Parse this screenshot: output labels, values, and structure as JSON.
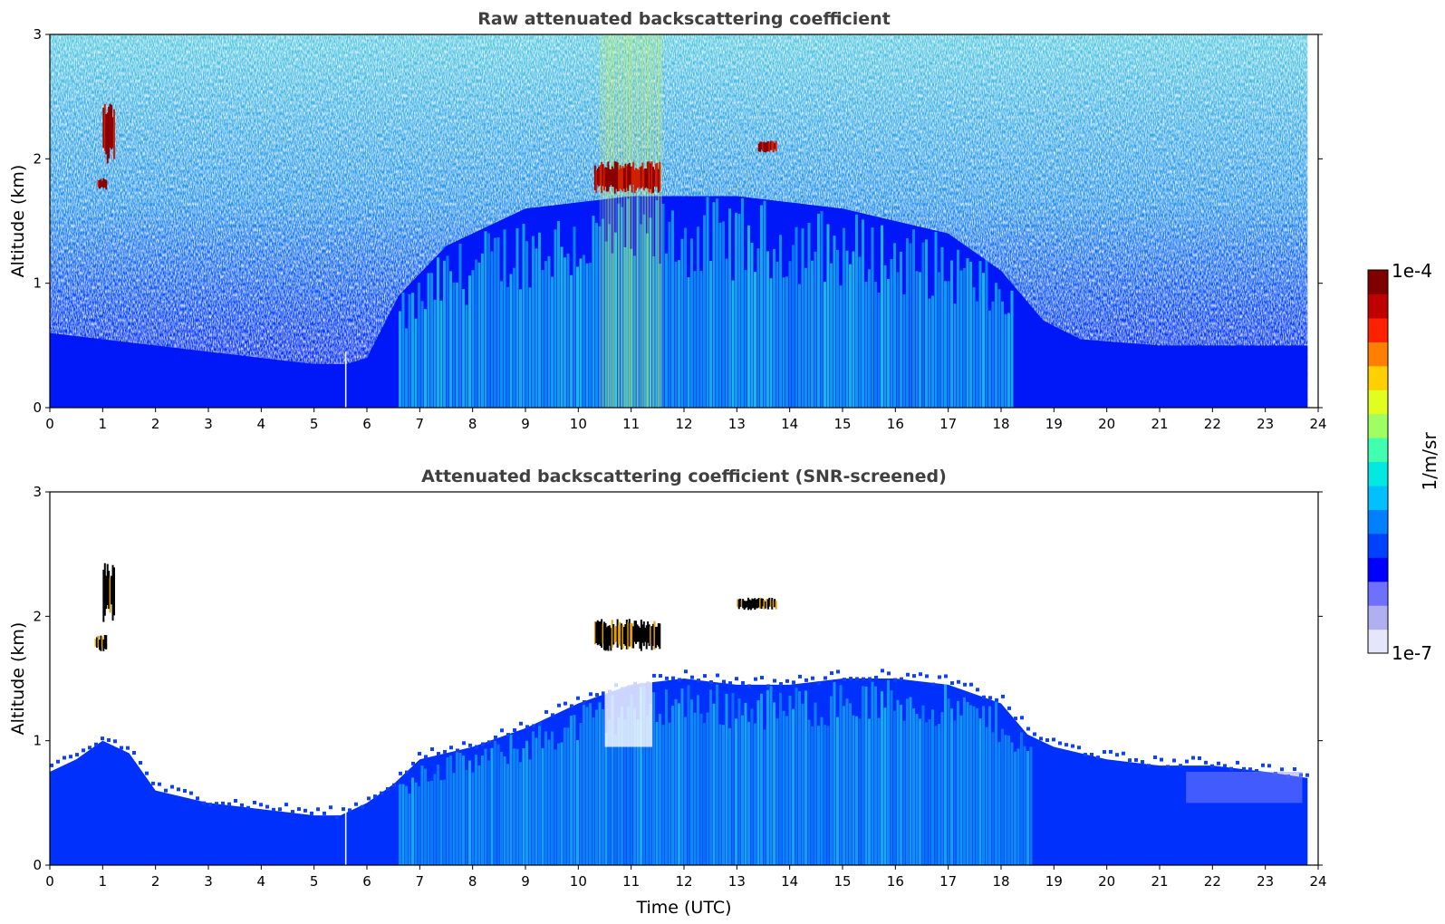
{
  "chart_data": [
    {
      "type": "heatmap",
      "title": "Raw attenuated backscattering coefficient",
      "xlabel": "",
      "ylabel": "Altitude (km)",
      "xlim": [
        0,
        24
      ],
      "ylim": [
        0,
        3
      ],
      "xticks": [
        "0",
        "1",
        "2",
        "3",
        "4",
        "5",
        "6",
        "7",
        "8",
        "9",
        "10",
        "11",
        "12",
        "13",
        "14",
        "15",
        "16",
        "17",
        "18",
        "19",
        "20",
        "21",
        "22",
        "23",
        "24"
      ],
      "yticks": [
        "0",
        "1",
        "2",
        "3"
      ],
      "x_data_end": 23.8,
      "boundary_layer_top_km": [
        [
          0,
          0.6
        ],
        [
          1,
          0.55
        ],
        [
          2,
          0.5
        ],
        [
          3,
          0.45
        ],
        [
          4,
          0.4
        ],
        [
          5,
          0.35
        ],
        [
          5.6,
          0.35
        ],
        [
          6,
          0.4
        ],
        [
          6.6,
          0.9
        ],
        [
          7.5,
          1.3
        ],
        [
          9,
          1.6
        ],
        [
          11,
          1.7
        ],
        [
          13,
          1.7
        ],
        [
          15,
          1.6
        ],
        [
          17,
          1.4
        ],
        [
          18,
          1.1
        ],
        [
          18.8,
          0.7
        ],
        [
          19.5,
          0.55
        ],
        [
          21,
          0.5
        ],
        [
          22,
          0.5
        ],
        [
          23.8,
          0.5
        ]
      ],
      "cloud_patches": [
        {
          "t_start": 0.9,
          "t_end": 1.05,
          "alt_bottom_km": 1.75,
          "alt_top_km": 1.85
        },
        {
          "t_start": 1.0,
          "t_end": 1.2,
          "alt_bottom_km": 1.95,
          "alt_top_km": 2.45
        },
        {
          "t_start": 10.3,
          "t_end": 11.55,
          "alt_bottom_km": 1.72,
          "alt_top_km": 1.98
        },
        {
          "t_start": 13.4,
          "t_end": 13.75,
          "alt_bottom_km": 2.05,
          "alt_top_km": 2.15
        }
      ]
    },
    {
      "type": "heatmap",
      "title": "Attenuated backscattering coefficient (SNR-screened)",
      "xlabel": "Time (UTC)",
      "ylabel": "Altitude (km)",
      "xlim": [
        0,
        24
      ],
      "ylim": [
        0,
        3
      ],
      "xticks": [
        "0",
        "1",
        "2",
        "3",
        "4",
        "5",
        "6",
        "7",
        "8",
        "9",
        "10",
        "11",
        "12",
        "13",
        "14",
        "15",
        "16",
        "17",
        "18",
        "19",
        "20",
        "21",
        "22",
        "23",
        "24"
      ],
      "yticks": [
        "0",
        "1",
        "2",
        "3"
      ],
      "x_data_end": 23.8,
      "signal_top_km": [
        [
          0,
          0.75
        ],
        [
          0.5,
          0.85
        ],
        [
          1,
          1.0
        ],
        [
          1.5,
          0.9
        ],
        [
          2,
          0.6
        ],
        [
          3,
          0.5
        ],
        [
          4,
          0.45
        ],
        [
          5,
          0.4
        ],
        [
          5.5,
          0.4
        ],
        [
          6,
          0.5
        ],
        [
          6.5,
          0.65
        ],
        [
          7,
          0.85
        ],
        [
          8,
          0.95
        ],
        [
          9,
          1.1
        ],
        [
          10,
          1.3
        ],
        [
          11,
          1.45
        ],
        [
          12,
          1.5
        ],
        [
          13,
          1.45
        ],
        [
          14,
          1.45
        ],
        [
          15,
          1.5
        ],
        [
          16,
          1.5
        ],
        [
          17,
          1.45
        ],
        [
          18,
          1.3
        ],
        [
          18.5,
          1.05
        ],
        [
          19,
          0.95
        ],
        [
          20,
          0.85
        ],
        [
          21,
          0.8
        ],
        [
          22,
          0.8
        ],
        [
          23,
          0.75
        ],
        [
          23.8,
          0.7
        ]
      ],
      "cloud_patches": [
        {
          "t_start": 0.85,
          "t_end": 1.05,
          "alt_bottom_km": 1.72,
          "alt_top_km": 1.85
        },
        {
          "t_start": 1.0,
          "t_end": 1.2,
          "alt_bottom_km": 1.95,
          "alt_top_km": 2.45
        },
        {
          "t_start": 10.3,
          "t_end": 11.55,
          "alt_bottom_km": 1.72,
          "alt_top_km": 1.98
        },
        {
          "t_start": 13.0,
          "t_end": 13.75,
          "alt_bottom_km": 2.05,
          "alt_top_km": 2.15
        }
      ]
    }
  ],
  "colorbar": {
    "label": "1/m/sr",
    "max_label": "1e-4",
    "min_label": "1e-7",
    "colormap": [
      "#e6e6fa",
      "#b0b0f0",
      "#7070ff",
      "#0000ff",
      "#0040ff",
      "#0080ff",
      "#00c0ff",
      "#00e8e0",
      "#40ffb0",
      "#a0ff60",
      "#e0ff20",
      "#ffd000",
      "#ff8000",
      "#ff2000",
      "#c00000",
      "#800000"
    ]
  }
}
